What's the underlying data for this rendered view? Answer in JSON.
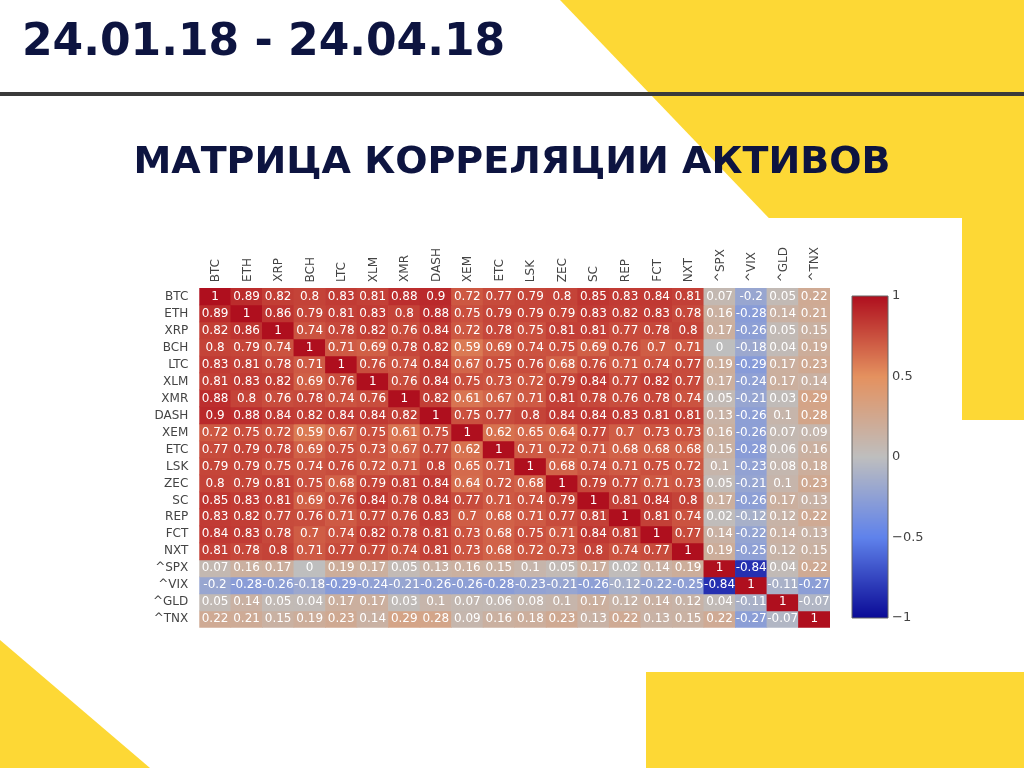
{
  "chart_data": {
    "type": "heatmap",
    "title": "МАТРИЦА КОРРЕЛЯЦИИ АКТИВОВ",
    "subtitle": "24.01.18 - 24.04.18",
    "categories": [
      "BTC",
      "ETH",
      "XRP",
      "BCH",
      "LTC",
      "XLM",
      "XMR",
      "DASH",
      "XEM",
      "ETC",
      "LSK",
      "ZEC",
      "SC",
      "REP",
      "FCT",
      "NXT",
      "^SPX",
      "^VIX",
      "^GLD",
      "^TNX"
    ],
    "y_categories": [
      "BTC",
      "ETH",
      "XRP",
      "BCH",
      "LTC",
      "XLM",
      "XMR",
      "DASH",
      "XEM",
      "ETC",
      "LSK",
      "ZEC",
      "SC",
      "REP",
      "FCT",
      "NXT",
      "^SPX",
      "^VIX",
      "^GLD",
      "^TNX"
    ],
    "cells": [
      [
        1,
        0.89,
        0.82,
        0.8,
        0.83,
        0.81,
        0.88,
        0.9,
        0.72,
        0.77,
        0.79,
        0.8,
        0.85,
        0.83,
        0.84,
        0.81,
        0.07,
        -0.2,
        0.05,
        0.22
      ],
      [
        0.89,
        1,
        0.86,
        0.79,
        0.81,
        0.83,
        0.8,
        0.88,
        0.75,
        0.79,
        0.79,
        0.79,
        0.83,
        0.82,
        0.83,
        0.78,
        0.16,
        -0.28,
        0.14,
        0.21
      ],
      [
        0.82,
        0.86,
        1,
        0.74,
        0.78,
        0.82,
        0.76,
        0.84,
        0.72,
        0.78,
        0.75,
        0.81,
        0.81,
        0.77,
        0.78,
        0.8,
        0.17,
        -0.26,
        0.05,
        0.15
      ],
      [
        0.8,
        0.79,
        0.74,
        1,
        0.71,
        0.69,
        0.78,
        0.82,
        0.59,
        0.69,
        0.74,
        0.75,
        0.69,
        0.76,
        0.7,
        0.71,
        0,
        -0.18,
        0.04,
        0.19
      ],
      [
        0.83,
        0.81,
        0.78,
        0.71,
        1,
        0.76,
        0.74,
        0.84,
        0.67,
        0.75,
        0.76,
        0.68,
        0.76,
        0.71,
        0.74,
        0.77,
        0.19,
        -0.29,
        0.17,
        0.23
      ],
      [
        0.81,
        0.83,
        0.82,
        0.69,
        0.76,
        1,
        0.76,
        0.84,
        0.75,
        0.73,
        0.72,
        0.79,
        0.84,
        0.77,
        0.82,
        0.77,
        0.17,
        -0.24,
        0.17,
        0.14
      ],
      [
        0.88,
        0.8,
        0.76,
        0.78,
        0.74,
        0.76,
        1,
        0.82,
        0.61,
        0.67,
        0.71,
        0.81,
        0.78,
        0.76,
        0.78,
        0.74,
        0.05,
        -0.21,
        0.03,
        0.29
      ],
      [
        0.9,
        0.88,
        0.84,
        0.82,
        0.84,
        0.84,
        0.82,
        1,
        0.75,
        0.77,
        0.8,
        0.84,
        0.84,
        0.83,
        0.81,
        0.81,
        0.13,
        -0.26,
        0.1,
        0.28
      ],
      [
        0.72,
        0.75,
        0.72,
        0.59,
        0.67,
        0.75,
        0.61,
        0.75,
        1,
        0.62,
        0.65,
        0.64,
        0.77,
        0.7,
        0.73,
        0.73,
        0.16,
        -0.26,
        0.07,
        0.09
      ],
      [
        0.77,
        0.79,
        0.78,
        0.69,
        0.75,
        0.73,
        0.67,
        0.77,
        0.62,
        1,
        0.71,
        0.72,
        0.71,
        0.68,
        0.68,
        0.68,
        0.15,
        -0.28,
        0.06,
        0.16
      ],
      [
        0.79,
        0.79,
        0.75,
        0.74,
        0.76,
        0.72,
        0.71,
        0.8,
        0.65,
        0.71,
        1,
        0.68,
        0.74,
        0.71,
        0.75,
        0.72,
        0.1,
        -0.23,
        0.08,
        0.18
      ],
      [
        0.8,
        0.79,
        0.81,
        0.75,
        0.68,
        0.79,
        0.81,
        0.84,
        0.64,
        0.72,
        0.68,
        1,
        0.79,
        0.77,
        0.71,
        0.73,
        0.05,
        -0.21,
        0.1,
        0.23
      ],
      [
        0.85,
        0.83,
        0.81,
        0.69,
        0.76,
        0.84,
        0.78,
        0.84,
        0.77,
        0.71,
        0.74,
        0.79,
        1,
        0.81,
        0.84,
        0.8,
        0.17,
        -0.26,
        0.17,
        0.13
      ],
      [
        0.83,
        0.82,
        0.77,
        0.76,
        0.71,
        0.77,
        0.76,
        0.83,
        0.7,
        0.68,
        0.71,
        0.77,
        0.81,
        1,
        0.81,
        0.74,
        0.02,
        -0.12,
        0.12,
        0.22
      ],
      [
        0.84,
        0.83,
        0.78,
        0.7,
        0.74,
        0.82,
        0.78,
        0.81,
        0.73,
        0.68,
        0.75,
        0.71,
        0.84,
        0.81,
        1,
        0.77,
        0.14,
        -0.22,
        0.14,
        0.13
      ],
      [
        0.81,
        0.78,
        0.8,
        0.71,
        0.77,
        0.77,
        0.74,
        0.81,
        0.73,
        0.68,
        0.72,
        0.73,
        0.8,
        0.74,
        0.77,
        1,
        0.19,
        -0.25,
        0.12,
        0.15
      ],
      [
        0.07,
        0.16,
        0.17,
        0,
        0.19,
        0.17,
        0.05,
        0.13,
        0.16,
        0.15,
        0.1,
        0.05,
        0.17,
        0.02,
        0.14,
        0.19,
        1,
        -0.84,
        0.04,
        0.22
      ],
      [
        -0.2,
        -0.28,
        -0.26,
        -0.18,
        -0.29,
        -0.24,
        -0.21,
        -0.26,
        -0.26,
        -0.28,
        -0.23,
        -0.21,
        -0.26,
        -0.12,
        -0.22,
        -0.25,
        -0.84,
        1,
        -0.11,
        -0.27
      ],
      [
        0.05,
        0.14,
        0.05,
        0.04,
        0.17,
        0.17,
        0.03,
        0.1,
        0.07,
        0.06,
        0.08,
        0.1,
        0.17,
        0.12,
        0.14,
        0.12,
        0.04,
        -0.11,
        1,
        -0.07
      ],
      [
        0.22,
        0.21,
        0.15,
        0.19,
        0.23,
        0.14,
        0.29,
        0.28,
        0.09,
        0.16,
        0.18,
        0.23,
        0.13,
        0.22,
        0.13,
        0.15,
        0.22,
        -0.27,
        -0.07,
        1
      ]
    ],
    "clim": [
      -1,
      1
    ],
    "cticks": [
      1,
      0.5,
      0,
      {
        "value": -0.5,
        "label": "−0.5"
      },
      {
        "value": -1,
        "label": "−1"
      }
    ],
    "data_labels": true
  }
}
